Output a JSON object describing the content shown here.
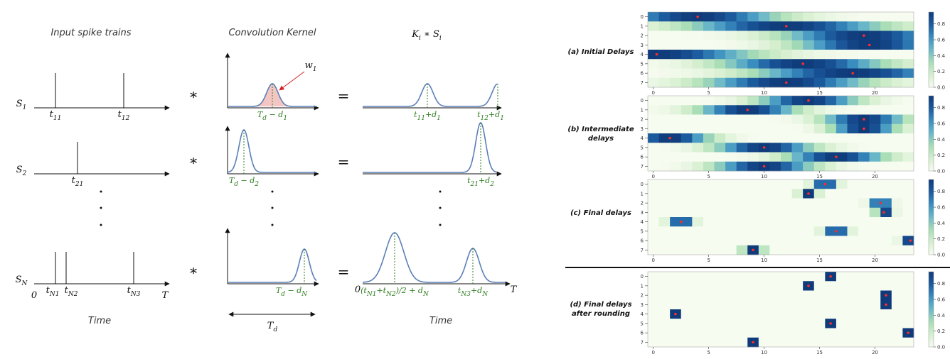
{
  "diagram": {
    "headers": [
      "Input spike trains",
      "Convolution Kernel",
      [
        "K",
        "i",
        " ∗ S",
        "i"
      ]
    ],
    "operators": {
      "convolve": "∗",
      "equals": "="
    },
    "rows": [
      {
        "signal": [
          "S",
          "1"
        ],
        "spikes": [
          [
            "t",
            "11"
          ],
          [
            "t",
            "12"
          ]
        ],
        "kernel": [
          "T",
          "d",
          " − d",
          "1"
        ],
        "weight": [
          "w",
          "1"
        ],
        "results": [
          [
            "t",
            "11",
            "+d",
            "1"
          ],
          [
            "t",
            "12",
            "+d",
            "1"
          ]
        ]
      },
      {
        "signal": [
          "S",
          "2"
        ],
        "spikes": [
          [
            "t",
            "21"
          ]
        ],
        "kernel": [
          "T",
          "d",
          " − d",
          "2"
        ],
        "results": [
          [
            "t",
            "21",
            "+d",
            "2"
          ]
        ]
      },
      {
        "signal": [
          "S",
          "N"
        ],
        "spikes": [
          [
            "t",
            "N1"
          ],
          [
            "t",
            "N2"
          ],
          [
            "t",
            "N3"
          ]
        ],
        "kernel": [
          "T",
          "d",
          " − d",
          "N"
        ],
        "results": [
          [
            "(t",
            "N1",
            "+t",
            "N2",
            ")/2 + d",
            "N"
          ],
          [
            "t",
            "N3",
            "+d",
            "N"
          ]
        ]
      }
    ],
    "origin": "0",
    "axis_end": "T",
    "time_label": "Time",
    "window": [
      "T",
      "d"
    ]
  },
  "heatmaps": {
    "clim": [
      0,
      0.95
    ],
    "colorbar_ticks": [
      {
        "value": 0,
        "label": "0.0"
      },
      0.2,
      0.4,
      0.6,
      0.8
    ],
    "xlim": [
      -0.5,
      23.5
    ],
    "xticks": [
      0,
      5,
      10,
      15,
      20
    ],
    "yticks": [
      0,
      1,
      2,
      3,
      4,
      5,
      6,
      7
    ],
    "panels": [
      {
        "label": [
          "(a) Initial Delays"
        ],
        "delays": [
          4,
          12,
          19,
          19.5,
          0.3,
          13.5,
          18,
          12
        ],
        "spread": [
          5,
          6,
          5,
          4.5,
          6,
          5,
          6,
          5
        ]
      },
      {
        "label": [
          "(b) Intermediate",
          "delays"
        ],
        "delays": [
          14,
          8.5,
          19,
          19,
          1.5,
          10,
          16.5,
          10
        ],
        "spread": [
          3,
          3,
          2.5,
          2,
          2.5,
          3,
          3,
          3
        ]
      },
      {
        "label": [
          "(c) Final delays"
        ],
        "delays": [
          15.5,
          14,
          20.5,
          20.8,
          2.5,
          16.5,
          23.2,
          9
        ],
        "spread": [
          0.7,
          0.5,
          0.6,
          0.5,
          0.7,
          0.7,
          0.5,
          0.6
        ]
      },
      {
        "label": [
          "(d) Final delays",
          "after rounding"
        ],
        "delays": [
          16,
          14,
          21,
          21,
          2,
          16,
          23,
          9
        ],
        "spread": [
          0.25,
          0.25,
          0.25,
          0.25,
          0.25,
          0.25,
          0.25,
          0.25
        ]
      }
    ]
  }
}
